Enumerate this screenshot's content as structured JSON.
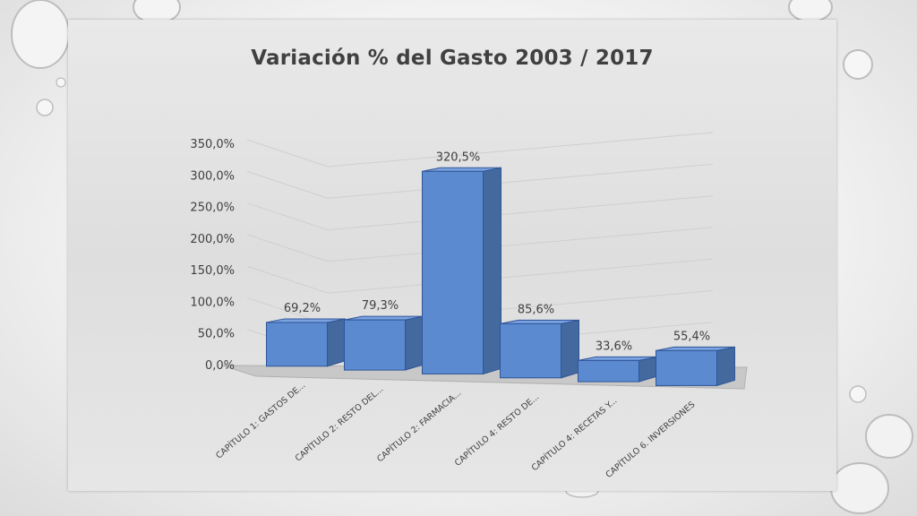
{
  "chart_data": {
    "type": "bar",
    "title": "Variación % del Gasto 2003 / 2017",
    "xlabel": "",
    "ylabel": "",
    "categories": [
      "CAPÍTULO 1: GASTOS DE...",
      "CAPÍTULO 2: RESTO DEL...",
      "CAPÍTULO 2: FARMACIA...",
      "CAPÍTULO 4: RESTO DE...",
      "CAPÍTULO 4: RECETAS Y...",
      "CAPÍTULO 6. INVERSIONES"
    ],
    "values": [
      69.2,
      79.3,
      320.5,
      85.6,
      33.6,
      55.4
    ],
    "value_labels": [
      "69,2%",
      "79,3%",
      "320,5%",
      "85,6%",
      "33,6%",
      "55,4%"
    ],
    "ylim": [
      0,
      350
    ],
    "y_ticks": [
      0,
      50,
      100,
      150,
      200,
      250,
      300,
      350
    ],
    "y_tick_labels": [
      "0,0%",
      "50,0%",
      "100,0%",
      "150,0%",
      "200,0%",
      "250,0%",
      "300,0%",
      "350,0%"
    ],
    "grid": true,
    "style": "3d-column",
    "colors": {
      "bar_front": "#5b8ad0",
      "bar_side": "#44699e",
      "bar_top": "#7aa3e0",
      "bar_edge": "#2f5597",
      "floor": "#c8c8c8",
      "gridline": "#cfcfcf"
    }
  }
}
